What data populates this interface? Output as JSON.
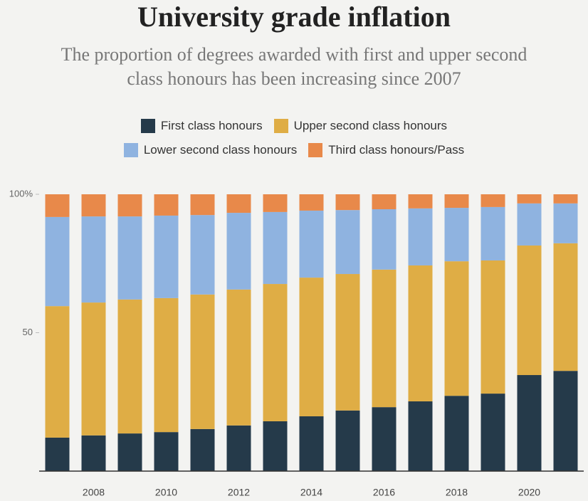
{
  "chart_data": {
    "type": "stacked-bar",
    "title": "University grade inflation",
    "subtitle": "The proportion of degrees awarded with first and upper second class honours has been increasing since 2007",
    "categories": [
      null,
      "2008",
      null,
      "2010",
      null,
      "2012",
      null,
      "2014",
      null,
      "2016",
      null,
      "2018",
      null,
      "2020",
      null
    ],
    "series": [
      {
        "name": "First class honours",
        "color": "#253a4a",
        "values": [
          12.1,
          12.9,
          13.6,
          14.1,
          15.2,
          16.5,
          18.0,
          19.8,
          21.9,
          23.1,
          25.2,
          27.2,
          28.0,
          34.7,
          36.2
        ]
      },
      {
        "name": "Upper second class honours",
        "color": "#dfad45",
        "values": [
          47.5,
          48.0,
          48.4,
          48.4,
          48.6,
          49.1,
          49.6,
          50.1,
          49.3,
          49.7,
          49.1,
          48.6,
          48.1,
          46.8,
          46.1
        ]
      },
      {
        "name": "Lower second class honours",
        "color": "#8fb3e0",
        "values": [
          32.2,
          31.1,
          30.0,
          29.8,
          28.7,
          27.7,
          26.0,
          24.2,
          23.1,
          21.8,
          20.6,
          19.3,
          19.3,
          15.2,
          14.4
        ]
      },
      {
        "name": "Third class honours/Pass",
        "color": "#e8894a",
        "values": [
          8.2,
          8.0,
          8.0,
          7.7,
          7.5,
          6.7,
          6.4,
          5.9,
          5.7,
          5.4,
          5.1,
          4.9,
          4.6,
          3.3,
          3.3
        ]
      }
    ],
    "ylim": [
      0,
      100
    ],
    "yticks": [
      50,
      {
        "value": 100,
        "label": "100%"
      }
    ]
  }
}
